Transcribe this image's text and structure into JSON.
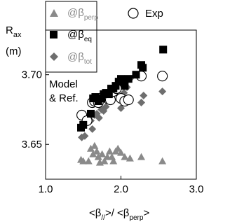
{
  "chart_data": {
    "type": "scatter",
    "title": "",
    "xlabel_parts": {
      "pre": "<β",
      "sub1": "//",
      "mid": ">/ <β",
      "sub2": "perp",
      "post": ">"
    },
    "ylabel": {
      "main": "R",
      "sub": "ax",
      "unit": "(m)"
    },
    "xlim": [
      1.0,
      3.0
    ],
    "ylim": [
      3.625,
      3.732
    ],
    "x_ticks": [
      "1.0",
      "2.0",
      "3.0"
    ],
    "y_ticks": [
      {
        "value": 3.65,
        "label": "3.65"
      },
      {
        "value": 3.7,
        "label": "3.70"
      }
    ],
    "annotation": [
      "Model",
      "& Ref."
    ],
    "legend": {
      "perp": {
        "pre": "@β",
        "sub": "perp"
      },
      "eq": {
        "pre": "@β",
        "sub": "eq"
      },
      "tot": {
        "pre": "@β",
        "sub": "tot"
      },
      "exp": "Exp"
    },
    "series": [
      {
        "name": "@β_perp",
        "marker": "triangle",
        "color": "#8a8a8a",
        "points": [
          [
            1.47,
            3.639
          ],
          [
            1.5,
            3.638
          ],
          [
            1.57,
            3.638
          ],
          [
            1.6,
            3.647
          ],
          [
            1.63,
            3.643
          ],
          [
            1.65,
            3.649
          ],
          [
            1.68,
            3.645
          ],
          [
            1.7,
            3.641
          ],
          [
            1.72,
            3.637
          ],
          [
            1.75,
            3.643
          ],
          [
            1.78,
            3.638
          ],
          [
            1.82,
            3.641
          ],
          [
            1.85,
            3.645
          ],
          [
            1.88,
            3.641
          ],
          [
            1.9,
            3.638
          ],
          [
            1.93,
            3.645
          ],
          [
            1.96,
            3.647
          ],
          [
            2.0,
            3.644
          ],
          [
            2.05,
            3.641
          ],
          [
            2.12,
            3.64
          ],
          [
            2.27,
            3.641
          ],
          [
            2.55,
            3.638
          ]
        ]
      },
      {
        "name": "@β_eq",
        "marker": "square",
        "color": "#000000",
        "points": [
          [
            1.47,
            3.662
          ],
          [
            1.5,
            3.664
          ],
          [
            1.6,
            3.672
          ],
          [
            1.63,
            3.683
          ],
          [
            1.66,
            3.684
          ],
          [
            1.7,
            3.681
          ],
          [
            1.74,
            3.683
          ],
          [
            1.77,
            3.686
          ],
          [
            1.8,
            3.687
          ],
          [
            1.84,
            3.686
          ],
          [
            1.87,
            3.69
          ],
          [
            1.9,
            3.69
          ],
          [
            1.93,
            3.692
          ],
          [
            1.97,
            3.695
          ],
          [
            2.0,
            3.697
          ],
          [
            2.05,
            3.692
          ],
          [
            2.1,
            3.697
          ],
          [
            2.2,
            3.7
          ],
          [
            2.27,
            3.707
          ],
          [
            2.29,
            3.705
          ],
          [
            2.56,
            3.718
          ]
        ]
      },
      {
        "name": "@β_tot",
        "marker": "diamond",
        "color": "#6e6e6e",
        "points": [
          [
            1.48,
            3.655
          ],
          [
            1.52,
            3.656
          ],
          [
            1.57,
            3.666
          ],
          [
            1.6,
            3.667
          ],
          [
            1.62,
            3.661
          ],
          [
            1.65,
            3.671
          ],
          [
            1.68,
            3.672
          ],
          [
            1.71,
            3.669
          ],
          [
            1.74,
            3.675
          ],
          [
            1.77,
            3.674
          ],
          [
            1.8,
            3.677
          ],
          [
            1.84,
            3.681
          ],
          [
            1.87,
            3.682
          ],
          [
            1.9,
            3.686
          ],
          [
            1.95,
            3.69
          ],
          [
            2.0,
            3.676
          ],
          [
            2.04,
            3.687
          ],
          [
            2.08,
            3.691
          ],
          [
            2.12,
            3.697
          ],
          [
            2.27,
            3.68
          ],
          [
            2.3,
            3.685
          ],
          [
            2.55,
            3.688
          ]
        ]
      },
      {
        "name": "Exp",
        "marker": "circle-open",
        "color": "#000000",
        "points": [
          [
            1.48,
            3.671
          ],
          [
            1.55,
            3.667
          ],
          [
            1.62,
            3.68
          ],
          [
            1.65,
            3.681
          ],
          [
            1.7,
            3.68
          ],
          [
            1.76,
            3.684
          ],
          [
            1.82,
            3.683
          ],
          [
            1.86,
            3.682
          ],
          [
            1.9,
            3.688
          ],
          [
            1.94,
            3.69
          ],
          [
            2.0,
            3.683
          ],
          [
            2.05,
            3.681
          ],
          [
            2.1,
            3.682
          ],
          [
            2.27,
            3.699
          ],
          [
            2.55,
            3.699
          ]
        ]
      }
    ]
  }
}
